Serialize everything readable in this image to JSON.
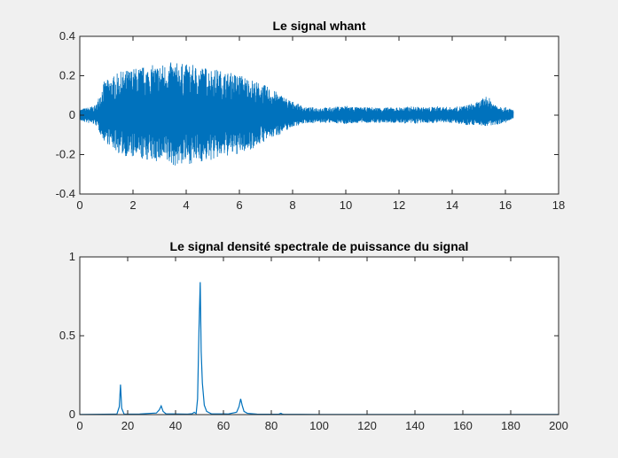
{
  "colors": {
    "figure_background": "#f0f0f0",
    "axes_background": "#ffffff",
    "axis_line": "#262626",
    "series": "#0072bd"
  },
  "chart_data": [
    {
      "type": "line",
      "title": "Le signal whant",
      "xlabel": "",
      "ylabel": "",
      "xlim": [
        0,
        18
      ],
      "ylim": [
        -0.4,
        0.4
      ],
      "xticks": [
        0,
        2,
        4,
        6,
        8,
        10,
        12,
        14,
        16,
        18
      ],
      "yticks": [
        -0.4,
        -0.2,
        0,
        0.2,
        0.4
      ],
      "xtick_labels": [
        "0",
        "2",
        "4",
        "6",
        "8",
        "10",
        "12",
        "14",
        "16",
        "18"
      ],
      "ytick_labels": [
        "-0.4",
        "-0.2",
        "0",
        "0.2",
        "0.4"
      ],
      "grid": false,
      "x_end": 16.3,
      "envelope": {
        "t": [
          0,
          0.6,
          0.9,
          1.5,
          2,
          2.5,
          3,
          3.5,
          4,
          4.5,
          5,
          5.5,
          6,
          6.5,
          7,
          7.5,
          8,
          8.5,
          9,
          9.5,
          10,
          10.5,
          11,
          11.5,
          12,
          12.5,
          13,
          13.5,
          14,
          14.5,
          15,
          15.3,
          15.6,
          16,
          16.3
        ],
        "upper": [
          0.03,
          0.05,
          0.17,
          0.22,
          0.24,
          0.25,
          0.26,
          0.27,
          0.26,
          0.25,
          0.24,
          0.22,
          0.21,
          0.18,
          0.15,
          0.11,
          0.07,
          0.04,
          0.04,
          0.04,
          0.05,
          0.04,
          0.04,
          0.04,
          0.04,
          0.045,
          0.04,
          0.045,
          0.04,
          0.05,
          0.07,
          0.1,
          0.06,
          0.04,
          0.03
        ],
        "lower": [
          -0.03,
          -0.05,
          -0.13,
          -0.2,
          -0.22,
          -0.23,
          -0.24,
          -0.26,
          -0.25,
          -0.24,
          -0.23,
          -0.21,
          -0.2,
          -0.17,
          -0.13,
          -0.1,
          -0.06,
          -0.04,
          -0.04,
          -0.04,
          -0.045,
          -0.04,
          -0.04,
          -0.04,
          -0.04,
          -0.045,
          -0.04,
          -0.04,
          -0.04,
          -0.05,
          -0.05,
          -0.06,
          -0.05,
          -0.04,
          -0.02
        ]
      }
    },
    {
      "type": "line",
      "title": "Le signal densité spectrale de puissance du signal",
      "xlabel": "",
      "ylabel": "",
      "xlim": [
        0,
        200
      ],
      "ylim": [
        0,
        1
      ],
      "xticks": [
        0,
        20,
        40,
        60,
        80,
        100,
        120,
        140,
        160,
        180,
        200
      ],
      "yticks": [
        0,
        0.5,
        1
      ],
      "xtick_labels": [
        "0",
        "20",
        "40",
        "60",
        "80",
        "100",
        "120",
        "140",
        "160",
        "180",
        "200"
      ],
      "ytick_labels": [
        "0",
        "0.5",
        "1"
      ],
      "grid": false,
      "x": [
        0,
        10,
        15.5,
        16.5,
        17,
        17.5,
        18.5,
        25,
        32,
        33.2,
        34,
        34.8,
        36,
        45,
        47,
        47.8,
        48.6,
        49.2,
        49.8,
        50.3,
        50.7,
        51.2,
        52,
        53,
        55,
        62,
        65.5,
        66.5,
        67.2,
        67.8,
        68.6,
        70,
        74,
        83,
        84,
        84.5,
        85,
        100,
        120,
        140,
        160,
        180,
        200
      ],
      "values": [
        0.001,
        0.002,
        0.003,
        0.05,
        0.19,
        0.04,
        0.003,
        0.004,
        0.01,
        0.03,
        0.055,
        0.02,
        0.005,
        0.003,
        0.006,
        0.015,
        0.006,
        0.1,
        0.55,
        0.84,
        0.4,
        0.2,
        0.06,
        0.02,
        0.005,
        0.004,
        0.015,
        0.05,
        0.1,
        0.06,
        0.02,
        0.008,
        0.003,
        0.002,
        0.008,
        0.004,
        0.002,
        0.001,
        0.001,
        0.001,
        0.001,
        0.001,
        0.001
      ]
    }
  ]
}
